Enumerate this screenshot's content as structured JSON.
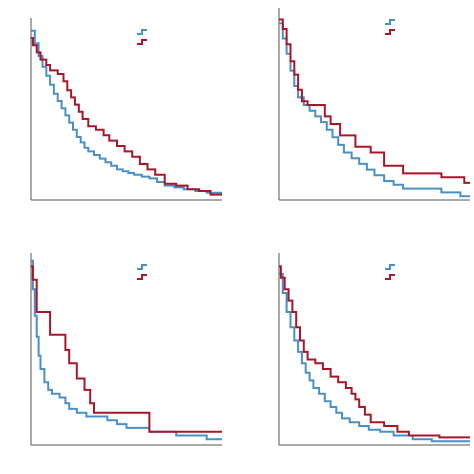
{
  "colors": {
    "blue": "#4a90c8",
    "red": "#a8162a",
    "axis": "#555555"
  },
  "chart_data": [
    {
      "type": "line",
      "step": true,
      "legend": "top-right",
      "xlim": [
        0,
        100
      ],
      "ylim": [
        0,
        1
      ],
      "series": [
        {
          "color": "#4a90c8",
          "points": [
            [
              0,
              0.94
            ],
            [
              2,
              0.87
            ],
            [
              4,
              0.8
            ],
            [
              6,
              0.74
            ],
            [
              8,
              0.69
            ],
            [
              10,
              0.64
            ],
            [
              12,
              0.59
            ],
            [
              14,
              0.55
            ],
            [
              16,
              0.51
            ],
            [
              18,
              0.47
            ],
            [
              20,
              0.43
            ],
            [
              22,
              0.39
            ],
            [
              24,
              0.35
            ],
            [
              26,
              0.32
            ],
            [
              28,
              0.29
            ],
            [
              30,
              0.27
            ],
            [
              33,
              0.25
            ],
            [
              36,
              0.23
            ],
            [
              39,
              0.21
            ],
            [
              42,
              0.19
            ],
            [
              45,
              0.17
            ],
            [
              48,
              0.16
            ],
            [
              51,
              0.15
            ],
            [
              54,
              0.14
            ],
            [
              58,
              0.13
            ],
            [
              62,
              0.12
            ],
            [
              66,
              0.1
            ],
            [
              70,
              0.08
            ],
            [
              75,
              0.07
            ],
            [
              80,
              0.06
            ],
            [
              86,
              0.05
            ],
            [
              92,
              0.04
            ],
            [
              100,
              0.04
            ]
          ]
        },
        {
          "color": "#a8162a",
          "points": [
            [
              0,
              0.9
            ],
            [
              1,
              0.86
            ],
            [
              3,
              0.82
            ],
            [
              5,
              0.78
            ],
            [
              8,
              0.75
            ],
            [
              10,
              0.72
            ],
            [
              14,
              0.7
            ],
            [
              17,
              0.66
            ],
            [
              19,
              0.61
            ],
            [
              21,
              0.57
            ],
            [
              23,
              0.53
            ],
            [
              25,
              0.49
            ],
            [
              27,
              0.45
            ],
            [
              30,
              0.41
            ],
            [
              34,
              0.39
            ],
            [
              38,
              0.36
            ],
            [
              41,
              0.33
            ],
            [
              45,
              0.3
            ],
            [
              49,
              0.27
            ],
            [
              53,
              0.24
            ],
            [
              57,
              0.2
            ],
            [
              61,
              0.17
            ],
            [
              65,
              0.14
            ],
            [
              70,
              0.09
            ],
            [
              76,
              0.08
            ],
            [
              82,
              0.06
            ],
            [
              88,
              0.05
            ],
            [
              94,
              0.03
            ],
            [
              100,
              0.03
            ]
          ]
        }
      ]
    },
    {
      "type": "line",
      "step": true,
      "legend": "top-right",
      "xlim": [
        0,
        100
      ],
      "ylim": [
        0,
        1
      ],
      "series": [
        {
          "color": "#4a90c8",
          "points": [
            [
              0,
              0.93
            ],
            [
              2,
              0.85
            ],
            [
              4,
              0.77
            ],
            [
              6,
              0.68
            ],
            [
              8,
              0.6
            ],
            [
              10,
              0.54
            ],
            [
              13,
              0.5
            ],
            [
              16,
              0.47
            ],
            [
              19,
              0.44
            ],
            [
              22,
              0.41
            ],
            [
              25,
              0.37
            ],
            [
              28,
              0.33
            ],
            [
              31,
              0.29
            ],
            [
              34,
              0.25
            ],
            [
              38,
              0.22
            ],
            [
              42,
              0.19
            ],
            [
              46,
              0.16
            ],
            [
              50,
              0.13
            ],
            [
              55,
              0.1
            ],
            [
              60,
              0.08
            ],
            [
              65,
              0.06
            ],
            [
              85,
              0.04
            ],
            [
              95,
              0.02
            ],
            [
              100,
              0.02
            ]
          ]
        },
        {
          "color": "#a8162a",
          "points": [
            [
              0,
              0.95
            ],
            [
              2,
              0.9
            ],
            [
              4,
              0.82
            ],
            [
              6,
              0.73
            ],
            [
              8,
              0.66
            ],
            [
              10,
              0.58
            ],
            [
              12,
              0.52
            ],
            [
              15,
              0.5
            ],
            [
              24,
              0.44
            ],
            [
              27,
              0.4
            ],
            [
              32,
              0.34
            ],
            [
              40,
              0.28
            ],
            [
              48,
              0.25
            ],
            [
              55,
              0.18
            ],
            [
              65,
              0.14
            ],
            [
              85,
              0.12
            ],
            [
              97,
              0.09
            ],
            [
              100,
              0.09
            ]
          ]
        }
      ]
    },
    {
      "type": "line",
      "step": true,
      "legend": "top-right",
      "xlim": [
        0,
        100
      ],
      "ylim": [
        0,
        1
      ],
      "series": [
        {
          "color": "#4a90c8",
          "points": [
            [
              0,
              0.97
            ],
            [
              1,
              0.82
            ],
            [
              2,
              0.68
            ],
            [
              3,
              0.57
            ],
            [
              4,
              0.47
            ],
            [
              5,
              0.4
            ],
            [
              7,
              0.33
            ],
            [
              9,
              0.29
            ],
            [
              11,
              0.27
            ],
            [
              15,
              0.25
            ],
            [
              18,
              0.22
            ],
            [
              20,
              0.19
            ],
            [
              24,
              0.17
            ],
            [
              29,
              0.15
            ],
            [
              35,
              0.15
            ],
            [
              40,
              0.13
            ],
            [
              45,
              0.11
            ],
            [
              50,
              0.09
            ],
            [
              62,
              0.07
            ],
            [
              76,
              0.05
            ],
            [
              92,
              0.03
            ],
            [
              100,
              0.03
            ]
          ]
        },
        {
          "color": "#a8162a",
          "points": [
            [
              0,
              0.94
            ],
            [
              1,
              0.87
            ],
            [
              3,
              0.7
            ],
            [
              10,
              0.58
            ],
            [
              18,
              0.5
            ],
            [
              20,
              0.43
            ],
            [
              24,
              0.35
            ],
            [
              28,
              0.29
            ],
            [
              31,
              0.22
            ],
            [
              33,
              0.17
            ],
            [
              62,
              0.07
            ],
            [
              100,
              0.07
            ]
          ]
        }
      ]
    },
    {
      "type": "line",
      "step": true,
      "legend": "top-right",
      "xlim": [
        0,
        100
      ],
      "ylim": [
        0,
        1
      ],
      "series": [
        {
          "color": "#4a90c8",
          "points": [
            [
              0,
              0.9
            ],
            [
              2,
              0.8
            ],
            [
              4,
              0.7
            ],
            [
              6,
              0.62
            ],
            [
              8,
              0.55
            ],
            [
              10,
              0.49
            ],
            [
              12,
              0.43
            ],
            [
              14,
              0.38
            ],
            [
              16,
              0.34
            ],
            [
              18,
              0.3
            ],
            [
              21,
              0.27
            ],
            [
              24,
              0.23
            ],
            [
              27,
              0.2
            ],
            [
              30,
              0.17
            ],
            [
              33,
              0.14
            ],
            [
              37,
              0.12
            ],
            [
              42,
              0.1
            ],
            [
              47,
              0.08
            ],
            [
              53,
              0.07
            ],
            [
              60,
              0.05
            ],
            [
              70,
              0.03
            ],
            [
              80,
              0.02
            ],
            [
              100,
              0.02
            ]
          ]
        },
        {
          "color": "#a8162a",
          "points": [
            [
              0,
              0.94
            ],
            [
              1,
              0.88
            ],
            [
              3,
              0.82
            ],
            [
              5,
              0.76
            ],
            [
              7,
              0.7
            ],
            [
              9,
              0.62
            ],
            [
              11,
              0.55
            ],
            [
              13,
              0.49
            ],
            [
              15,
              0.45
            ],
            [
              19,
              0.43
            ],
            [
              23,
              0.4
            ],
            [
              27,
              0.36
            ],
            [
              31,
              0.33
            ],
            [
              35,
              0.3
            ],
            [
              38,
              0.27
            ],
            [
              40,
              0.24
            ],
            [
              42,
              0.2
            ],
            [
              45,
              0.16
            ],
            [
              48,
              0.12
            ],
            [
              55,
              0.1
            ],
            [
              62,
              0.07
            ],
            [
              68,
              0.05
            ],
            [
              84,
              0.04
            ],
            [
              100,
              0.04
            ]
          ]
        }
      ]
    }
  ]
}
